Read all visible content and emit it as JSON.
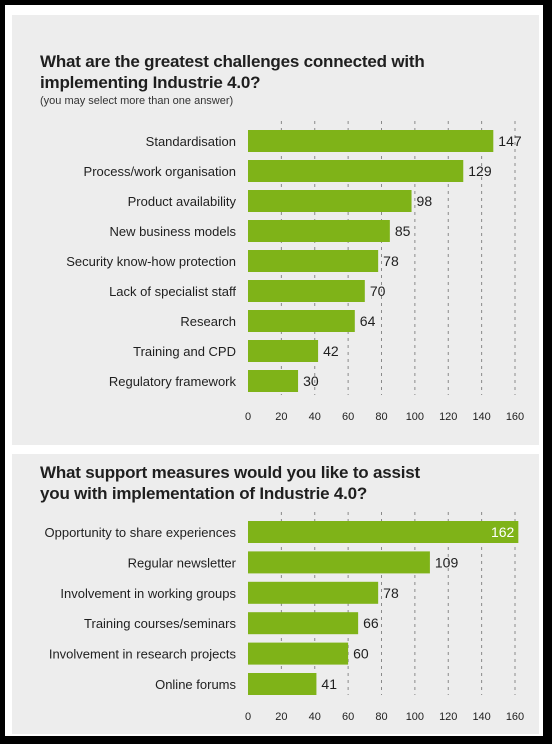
{
  "chart_data": [
    {
      "type": "bar",
      "orientation": "horizontal",
      "title_lines": [
        "What are the greatest challenges connected with",
        "implementing Industrie 4.0?"
      ],
      "subtitle": "(you may select more than one answer)",
      "categories": [
        "Standardisation",
        "Process/work organisation",
        "Product availability",
        "New business models",
        "Security know-how protection",
        "Lack of specialist staff",
        "Research",
        "Training and CPD",
        "Regulatory framework"
      ],
      "values": [
        147,
        129,
        98,
        85,
        78,
        70,
        64,
        42,
        30
      ],
      "xlim": [
        0,
        160
      ],
      "xticks": [
        0,
        20,
        40,
        60,
        80,
        100,
        120,
        140,
        160
      ],
      "grid": true,
      "bar_color": "#7fb318"
    },
    {
      "type": "bar",
      "orientation": "horizontal",
      "title_lines": [
        "What support measures would you like to assist",
        "you with implementation of Industrie 4.0?"
      ],
      "categories": [
        "Opportunity to share experiences",
        "Regular newsletter",
        "Involvement in working groups",
        "Training courses/seminars",
        "Involvement in research projects",
        "Online forums"
      ],
      "values": [
        162,
        109,
        78,
        66,
        60,
        41
      ],
      "xlim": [
        0,
        160
      ],
      "xticks": [
        0,
        20,
        40,
        60,
        80,
        100,
        120,
        140,
        160
      ],
      "grid": true,
      "bar_color": "#7fb318"
    }
  ]
}
